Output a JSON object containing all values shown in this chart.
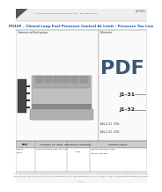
{
  "title": "P016F – Closed Loop Fuel Pressure Control At Limit - Pressure Too Low",
  "breadcrumb": "1  Closed Loop Fuel Pressure Control At Limit - Pressure Too Low",
  "doc_id": "SEPC0019",
  "page": "1 / 4",
  "section_left": "Common rail fuel system",
  "section_right": "Schematic",
  "connector_labels": [
    "J1-31",
    "J1-32"
  ],
  "connector_sub": [
    "A18, J1-31 - F105",
    "A18, J1-32 - F105"
  ],
  "table_headers": [
    "Fault\nCode",
    "Condition For Fault",
    "Observable Symptoms",
    "Possible Causes"
  ],
  "table_row_code1": "Engine",
  "table_row_code2": "P016F",
  "table_row_cond": "Commanded the fuel to close",
  "table_row_symp": "None",
  "table_row_causes": [
    "High-pressure pump",
    "Fuel injectors"
  ],
  "footer1": "Copyright in this documentation belongs to its owner. No reproduction, copying, storage, transmission or other similar action is taken without written consent from the owner.",
  "footer2": "The information contained herein is current at the time this output document was generated, and is subject to change. The reader is advised that current data are accessible.",
  "bg_color": "#ffffff",
  "title_color": "#1155aa",
  "border_color": "#888888",
  "table_header_bg": "#cccccc",
  "text_color": "#222222",
  "gray_light": "#f0f0f0",
  "gray_med": "#dddddd"
}
